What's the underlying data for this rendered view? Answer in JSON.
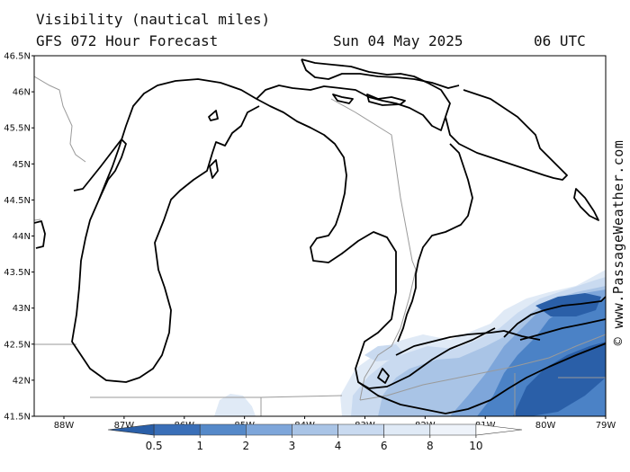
{
  "header": {
    "title": "Visibility (nautical miles)",
    "subtitle": "GFS 072 Hour Forecast",
    "valid_date": "Sun 04 May 2025",
    "valid_time": "06 UTC"
  },
  "credit": "© www.PassageWeather.com",
  "map": {
    "lat_labels": [
      "46.5N",
      "46N",
      "45.5N",
      "45N",
      "44.5N",
      "44N",
      "43.5N",
      "43N",
      "42.5N",
      "42N",
      "41.5N"
    ],
    "lon_labels": [
      "88W",
      "87W",
      "86W",
      "85W",
      "84W",
      "83W",
      "82W",
      "81W",
      "80W",
      "79W"
    ],
    "colors": {
      "land_fill": "#ffffff",
      "coast": "#000000",
      "borders": "#9a9a9a",
      "vis_05": "#2a5fa8",
      "vis_1": "#4b82c6",
      "vis_2": "#7ea6da",
      "vis_3": "#a9c4e6",
      "vis_4": "#c9daf0",
      "vis_6": "#e0eaf6"
    }
  },
  "colorbar": {
    "labels": [
      "0.5",
      "1",
      "2",
      "3",
      "4",
      "6",
      "8",
      "10"
    ],
    "colors": [
      "#2a5fa8",
      "#3a6fb8",
      "#5589c9",
      "#7ea6da",
      "#a9c4e6",
      "#c9daf0",
      "#e0eaf6",
      "#eef3fa",
      "#ffffff"
    ]
  }
}
